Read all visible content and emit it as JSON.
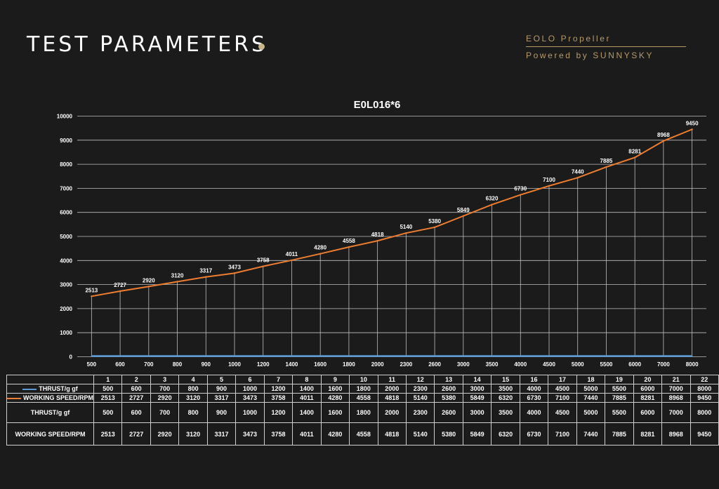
{
  "header": {
    "title": "TEST PARAMETERS",
    "brand_line1": "EOLO Propeller",
    "brand_line2": "Powered by SUNNYSKY"
  },
  "colors": {
    "background": "#1b1b1b",
    "accent_gold": "#b69a6a",
    "dot": "#c8b48a",
    "thrust_line": "#5b9bd5",
    "speed_line": "#ed7d31",
    "grid": "#bfbfbf"
  },
  "chart_data": {
    "type": "line",
    "title": "E0L016*6",
    "xlabel": "",
    "ylabel": "",
    "ylim": [
      0,
      10000
    ],
    "yticks": [
      0,
      1000,
      2000,
      3000,
      4000,
      5000,
      6000,
      7000,
      8000,
      9000,
      10000
    ],
    "grid": true,
    "categories": [
      "500",
      "600",
      "700",
      "800",
      "900",
      "1000",
      "1200",
      "1400",
      "1600",
      "1800",
      "2000",
      "2300",
      "2600",
      "3000",
      "3500",
      "4000",
      "4500",
      "5000",
      "5500",
      "6000",
      "7000",
      "8000"
    ],
    "series": [
      {
        "name": "THRUST/g gf",
        "color": "#5b9bd5",
        "values": [
          500,
          600,
          700,
          800,
          900,
          1000,
          1200,
          1400,
          1600,
          1800,
          2000,
          2300,
          2600,
          3000,
          3500,
          4000,
          4500,
          5000,
          5500,
          6000,
          7000,
          8000
        ]
      },
      {
        "name": "WORKING SPEED/RPM",
        "color": "#ed7d31",
        "values": [
          2513,
          2727,
          2920,
          3120,
          3317,
          3473,
          3758,
          4011,
          4280,
          4558,
          4818,
          5140,
          5380,
          5849,
          6320,
          6730,
          7100,
          7440,
          7885,
          8281,
          8968,
          9450
        ]
      }
    ]
  },
  "table": {
    "indices": [
      "1",
      "2",
      "3",
      "4",
      "5",
      "6",
      "7",
      "8",
      "9",
      "10",
      "11",
      "12",
      "13",
      "14",
      "15",
      "16",
      "17",
      "18",
      "19",
      "20",
      "21",
      "22"
    ],
    "legend_thrust_label": "THRUST/g gf",
    "legend_speed_label": "WORKING SPEED/RPM",
    "thrust_label": "THRUST/g gf",
    "speed_label": "WORKING SPEED/RPM"
  }
}
